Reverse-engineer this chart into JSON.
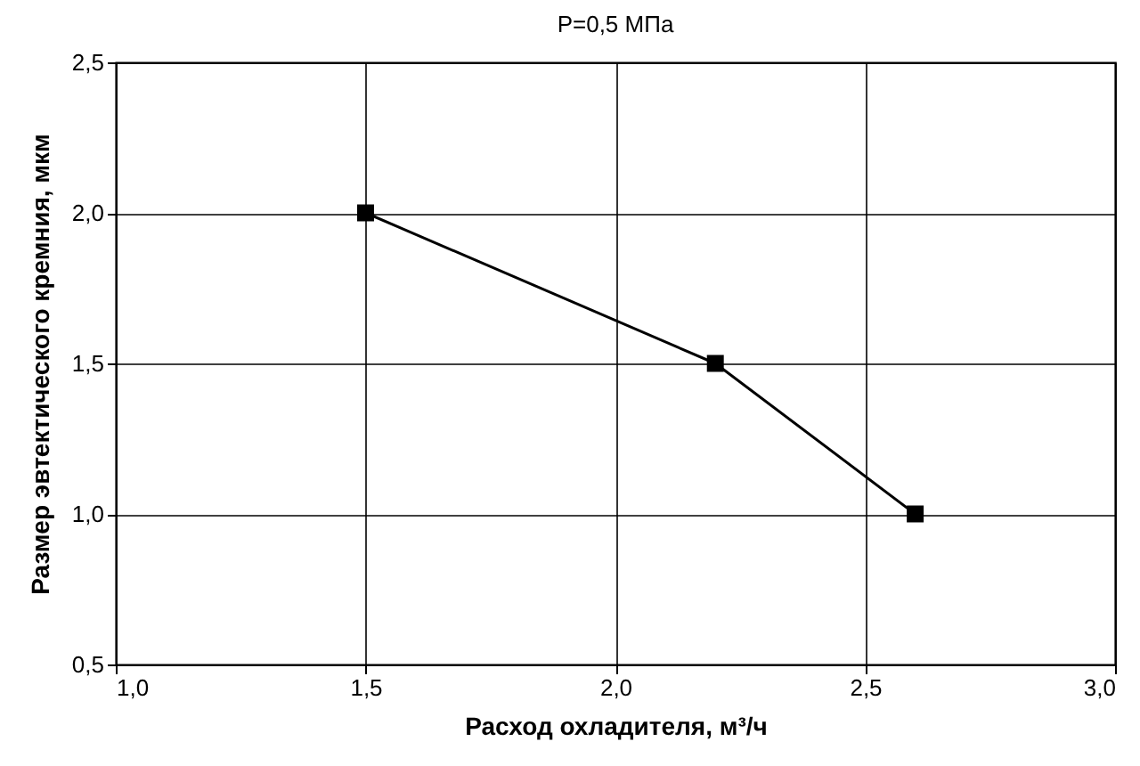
{
  "chart_data": {
    "type": "line",
    "title": "P=0,5 МПа",
    "xlabel": "Расход охладителя, м³/ч",
    "ylabel": "Размер эвтектического кремния, мкм",
    "x": [
      1.5,
      2.2,
      2.6
    ],
    "series": [
      {
        "color": "#000000",
        "values": [
          2.0,
          1.5,
          1.0
        ]
      }
    ],
    "xlim": [
      1,
      3
    ],
    "xticks": [
      {
        "value": 1,
        "label": "1,0"
      },
      {
        "value": 1.5,
        "label": "1,5"
      },
      {
        "value": 2,
        "label": "2,0"
      },
      {
        "value": 2.5,
        "label": "2,5"
      },
      {
        "value": 3,
        "label": "3,0"
      }
    ],
    "ylim": [
      0.5,
      2.5
    ],
    "yticks": [
      {
        "value": 0.5,
        "label": "0,5"
      },
      {
        "value": 1,
        "label": "1,0"
      },
      {
        "value": 1.5,
        "label": "1,5"
      },
      {
        "value": 2,
        "label": "2,0"
      },
      {
        "value": 2.5,
        "label": "2,5"
      }
    ],
    "grid": true,
    "marker": "square",
    "line_style": "solid"
  }
}
